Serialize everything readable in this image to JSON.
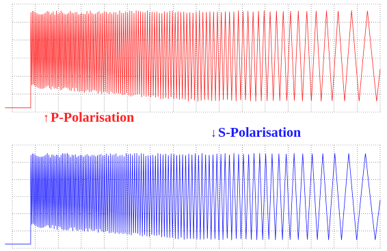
{
  "colors": {
    "p": "#ff2222",
    "s": "#1a1aff",
    "grid": "#555555"
  },
  "labels": {
    "p_text": "P-Polarisation",
    "p_arrow": "↑",
    "s_text": "S-Polarisation",
    "s_arrow": "↓"
  },
  "chart_data": [
    {
      "type": "line",
      "name": "P-Polarisation",
      "grid": true,
      "x_range": [
        0,
        1
      ],
      "y_range": [
        0,
        1
      ],
      "baseline_level": 0.04,
      "step_x": 0.05,
      "series": [
        {
          "name": "P-Polarisation",
          "envelope_top": 0.94,
          "envelope_bottom_start": 0.22,
          "envelope_bottom_end": 0.1,
          "chirp_start_period": 0.004,
          "chirp_end_period": 0.055
        }
      ]
    },
    {
      "type": "line",
      "name": "S-Polarisation",
      "grid": true,
      "x_range": [
        0,
        1
      ],
      "y_range": [
        0,
        1
      ],
      "baseline_level": 0.04,
      "step_x": 0.05,
      "series": [
        {
          "name": "S-Polarisation",
          "envelope_top": 0.92,
          "envelope_bottom_start": 0.2,
          "envelope_bottom_end": 0.08,
          "chirp_start_period": 0.004,
          "chirp_end_period": 0.06
        }
      ]
    }
  ]
}
